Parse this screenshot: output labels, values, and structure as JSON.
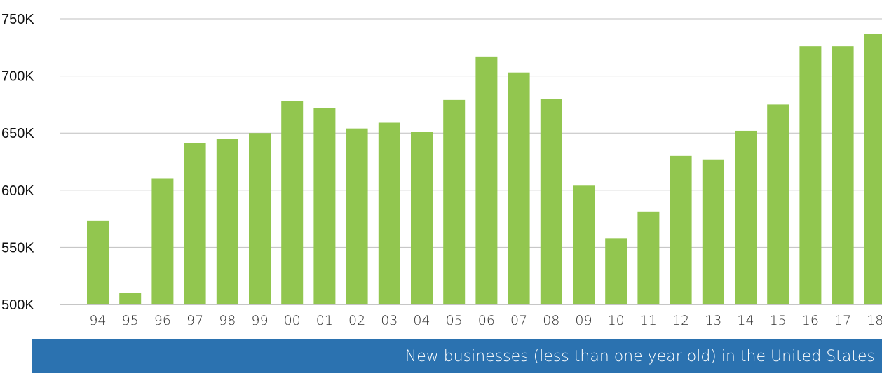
{
  "chart_data": {
    "type": "bar",
    "caption": "New businesses (less than one year old) in the United States",
    "categories": [
      "94",
      "95",
      "96",
      "97",
      "98",
      "99",
      "00",
      "01",
      "02",
      "03",
      "04",
      "05",
      "06",
      "07",
      "08",
      "09",
      "10",
      "11",
      "12",
      "13",
      "14",
      "15",
      "16",
      "17",
      "18"
    ],
    "values": [
      573000,
      510000,
      610000,
      641000,
      645000,
      650000,
      678000,
      672000,
      654000,
      659000,
      651000,
      679000,
      717000,
      703000,
      680000,
      604000,
      558000,
      581000,
      630000,
      627000,
      652000,
      675000,
      726000,
      726000,
      737000
    ],
    "y_tick_labels": [
      "500K",
      "550K",
      "600K",
      "650K",
      "700K",
      "750K"
    ],
    "ylim": [
      500000,
      750000
    ],
    "grid": "horizontal",
    "colors": {
      "bar": "#92c64f",
      "grid": "#bfbfbf",
      "caption_background": "#2b72b0",
      "caption_text": "#ffffff"
    }
  }
}
